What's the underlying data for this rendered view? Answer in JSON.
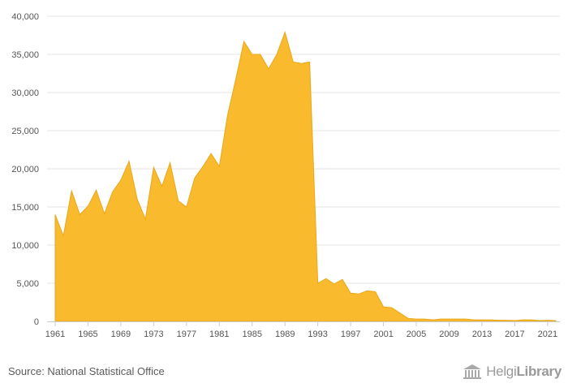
{
  "chart_data": {
    "type": "area",
    "color": "#F9BB2D",
    "line_color": "#E9A71A",
    "grid": true,
    "legend": "none",
    "x": [
      1961,
      1962,
      1963,
      1964,
      1965,
      1966,
      1967,
      1968,
      1969,
      1970,
      1971,
      1972,
      1973,
      1974,
      1975,
      1976,
      1977,
      1978,
      1979,
      1980,
      1981,
      1982,
      1983,
      1984,
      1985,
      1986,
      1987,
      1988,
      1989,
      1990,
      1991,
      1992,
      1993,
      1994,
      1995,
      1996,
      1997,
      1998,
      1999,
      2000,
      2001,
      2002,
      2003,
      2004,
      2005,
      2006,
      2007,
      2008,
      2009,
      2010,
      2011,
      2012,
      2013,
      2014,
      2015,
      2016,
      2017,
      2018,
      2019,
      2020,
      2021,
      2022
    ],
    "series": [
      {
        "values": [
          14000,
          11200,
          17100,
          14000,
          15100,
          17200,
          14100,
          17000,
          18500,
          21000,
          16000,
          13400,
          20200,
          17700,
          20800,
          15800,
          15000,
          18800,
          20300,
          22000,
          20300,
          27000,
          31700,
          36700,
          35000,
          35000,
          33100,
          35000,
          37900,
          34000,
          33800,
          34000,
          5000,
          5600,
          4900,
          5500,
          3700,
          3600,
          4000,
          3900,
          1900,
          1800,
          1100,
          400,
          300,
          300,
          200,
          300,
          300,
          300,
          300,
          200,
          200,
          200,
          150,
          150,
          100,
          200,
          200,
          100,
          150,
          100
        ]
      }
    ],
    "ylim": [
      0,
      40000
    ],
    "yticks": [
      0,
      5000,
      10000,
      15000,
      20000,
      25000,
      30000,
      35000,
      40000
    ],
    "ytick_labels": [
      "0",
      "5,000",
      "10,000",
      "15,000",
      "20,000",
      "25,000",
      "30,000",
      "35,000",
      "40,000"
    ],
    "xticks": [
      1961,
      1965,
      1969,
      1973,
      1977,
      1981,
      1985,
      1989,
      1993,
      1997,
      2001,
      2005,
      2009,
      2013,
      2017,
      2021
    ],
    "xtick_labels": [
      "1961",
      "1965",
      "1969",
      "1973",
      "1977",
      "1981",
      "1985",
      "1989",
      "1993",
      "1997",
      "2001",
      "2005",
      "2009",
      "2013",
      "2017",
      "2021"
    ],
    "title": "",
    "xlabel": "",
    "ylabel": ""
  },
  "footer": {
    "source": "Source: National Statistical Office",
    "logo_regular": "Helgi",
    "logo_bold": "Library",
    "logo_icon": "library-building-icon"
  }
}
